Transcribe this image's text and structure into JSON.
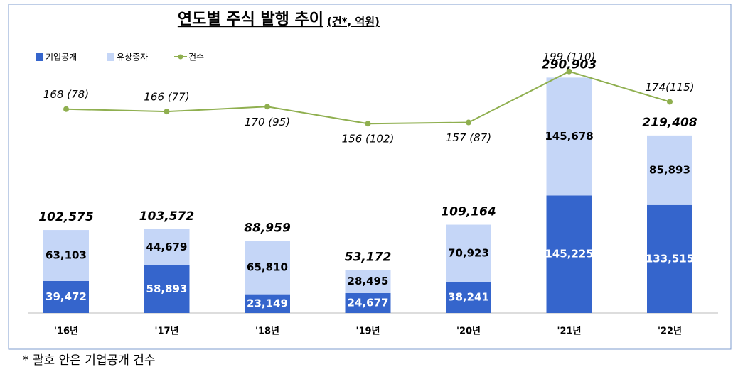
{
  "chart_data": {
    "type": "bar-line",
    "title": "연도별 주식 발행 추이",
    "subtitle": "(건*, 억원)",
    "categories": [
      "'16년",
      "'17년",
      "'18년",
      "'19년",
      "'20년",
      "'21년",
      "'22년"
    ],
    "series": [
      {
        "name": "기업공개",
        "color": "#3565cc",
        "values": [
          39472,
          58893,
          23149,
          24677,
          38241,
          145225,
          133515
        ],
        "value_labels": [
          "39,472",
          "58,893",
          "23,149",
          "24,677",
          "38,241",
          "145,225",
          "133,515"
        ]
      },
      {
        "name": "유상증자",
        "color": "#c5d6f7",
        "values": [
          63103,
          44679,
          65810,
          28495,
          70923,
          145678,
          85893
        ],
        "value_labels": [
          "63,103",
          "44,679",
          "65,810",
          "28,495",
          "70,923",
          "145,678",
          "85,893"
        ]
      },
      {
        "name": "건수",
        "color": "#8faf4f",
        "axis": "y2",
        "values": [
          168,
          166,
          170,
          156,
          157,
          199,
          174
        ],
        "value_labels": [
          "168 (78)",
          "166 (77)",
          "170 (95)",
          "156 (102)",
          "157 (87)",
          "199 (110)",
          "174(115)"
        ]
      }
    ],
    "totals": [
      102575,
      103572,
      88959,
      53172,
      109164,
      290903,
      219408
    ],
    "total_labels": [
      "102,575",
      "103,572",
      "88,959",
      "53,172",
      "109,164",
      "290,903",
      "219,408"
    ],
    "ylim": [
      0,
      300000
    ],
    "y2lim": [
      0,
      200
    ],
    "legend": "top-left",
    "footnote": "* 괄호 안은 기업공개 건수"
  }
}
